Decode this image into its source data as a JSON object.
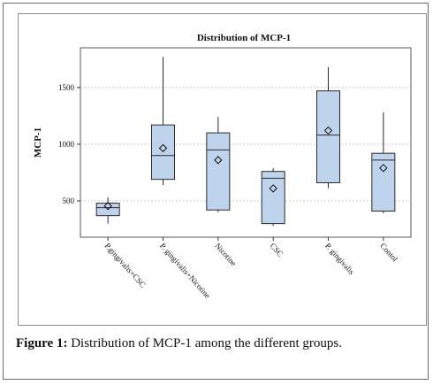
{
  "caption": {
    "label": "Figure 1:",
    "text": " Distribution of MCP-1 among the different groups."
  },
  "chart_data": {
    "type": "box",
    "title": "Distribution of MCP-1",
    "xlabel": "",
    "ylabel": "MCP-1",
    "ylim": [
      180,
      1850
    ],
    "yticks": [
      500,
      1000,
      1500
    ],
    "grid": "horizontal-dashed",
    "colors": {
      "box_fill": "#bed3ec",
      "box_stroke": "#2b2b2b",
      "grid": "#c9c9c9"
    },
    "categories": [
      "P.gingivalis+CSC",
      "P. gingivalis+Nicotine",
      "Nicotine",
      "CSC",
      "P. gingivalis",
      "Contol"
    ],
    "boxes": [
      {
        "min": 300,
        "q1": 370,
        "median": 440,
        "q3": 480,
        "max": 530,
        "mean": 455
      },
      {
        "min": 640,
        "q1": 690,
        "median": 900,
        "q3": 1170,
        "max": 1770,
        "mean": 965
      },
      {
        "min": 400,
        "q1": 420,
        "median": 950,
        "q3": 1100,
        "max": 1240,
        "mean": 860
      },
      {
        "min": 280,
        "q1": 300,
        "median": 700,
        "q3": 760,
        "max": 790,
        "mean": 610
      },
      {
        "min": 610,
        "q1": 660,
        "median": 1080,
        "q3": 1470,
        "max": 1680,
        "mean": 1120
      },
      {
        "min": 390,
        "q1": 410,
        "median": 860,
        "q3": 920,
        "max": 1280,
        "mean": 790
      }
    ]
  }
}
